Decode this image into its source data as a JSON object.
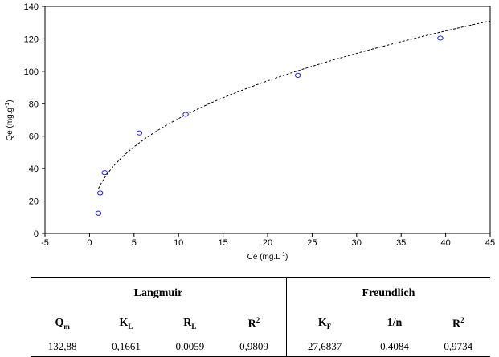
{
  "chart_data": {
    "type": "scatter",
    "x_axis": {
      "label": "Ce (mg.L",
      "label_sup": "-1",
      "label_close": ")",
      "range": [
        -5,
        45
      ],
      "ticks": [
        -5,
        0,
        5,
        10,
        15,
        20,
        25,
        30,
        35,
        40,
        45
      ]
    },
    "y_axis": {
      "label": "Qe (mg.g",
      "label_sup": "-1",
      "label_close": ")",
      "range": [
        0,
        140
      ],
      "ticks": [
        0,
        20,
        40,
        60,
        80,
        100,
        120,
        140
      ]
    },
    "grid": false,
    "points": [
      {
        "x": 1.0,
        "y": 12.5
      },
      {
        "x": 1.2,
        "y": 25
      },
      {
        "x": 1.7,
        "y": 37.5
      },
      {
        "x": 5.6,
        "y": 62
      },
      {
        "x": 10.8,
        "y": 73.5
      },
      {
        "x": 23.4,
        "y": 97.5
      },
      {
        "x": 39.4,
        "y": 120.5
      }
    ],
    "fit": {
      "style": "dashed",
      "x_start": 1.0,
      "x_end": 45,
      "kf": 27.6837,
      "n_inv": 0.4084
    },
    "colors": {
      "points": "#1a1aff",
      "fit": "#000000",
      "axes": "#000000"
    }
  },
  "table": {
    "groups": [
      "Langmuir",
      "Freundlich"
    ],
    "symbols": [
      {
        "base": "Q",
        "sub": "m",
        "sup": ""
      },
      {
        "base": "K",
        "sub": "L",
        "sup": ""
      },
      {
        "base": "R",
        "sub": "L",
        "sup": ""
      },
      {
        "base": "R",
        "sub": "",
        "sup": "2"
      },
      {
        "base": "K",
        "sub": "F",
        "sup": ""
      },
      {
        "base": "1/n",
        "sub": "",
        "sup": ""
      },
      {
        "base": "R",
        "sub": "",
        "sup": "2"
      }
    ],
    "values": [
      "132,88",
      "0,1661",
      "0,0059",
      "0,9809",
      "27,6837",
      "0,4084",
      "0,9734"
    ]
  }
}
